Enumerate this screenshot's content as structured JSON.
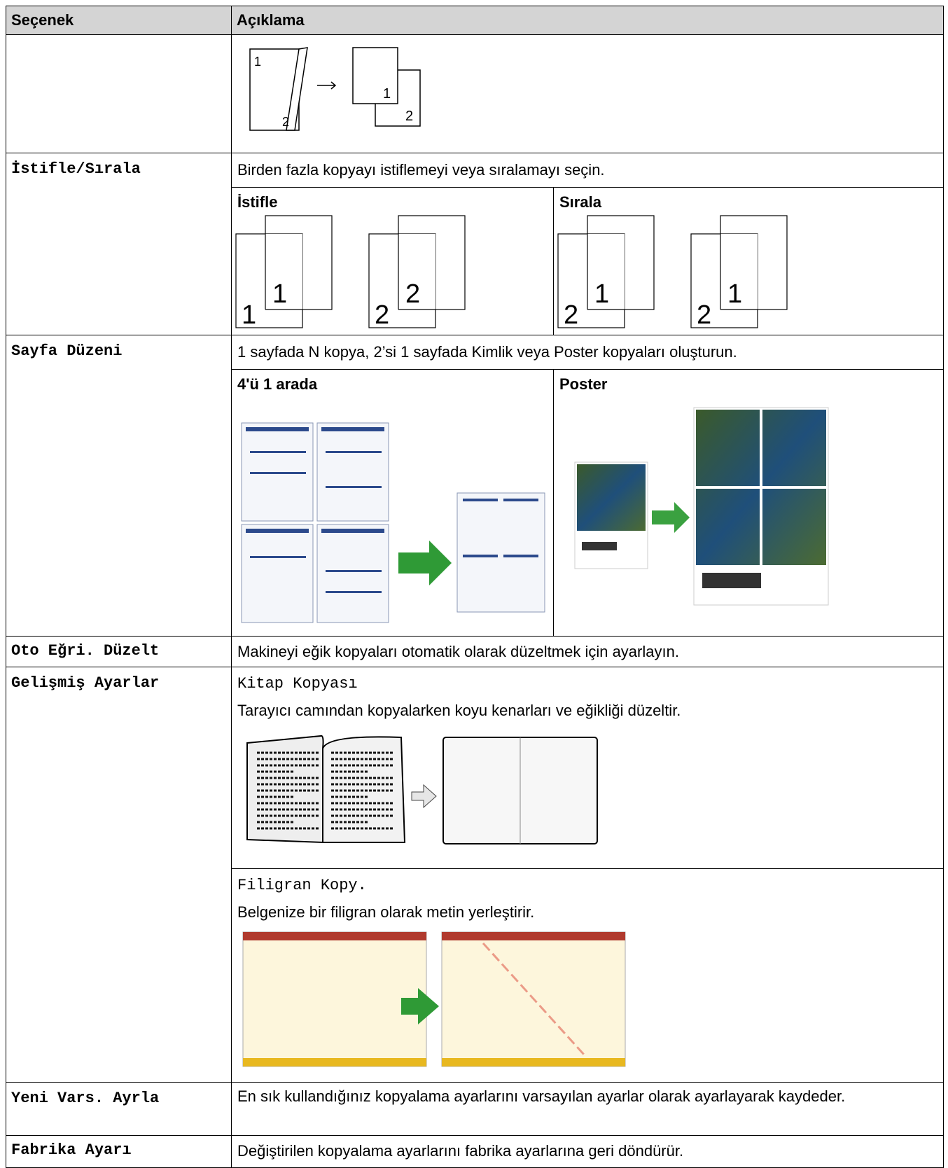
{
  "table": {
    "headers": [
      "Seçenek",
      "Açıklama"
    ],
    "rows": [
      {
        "figure_labels": [
          "1",
          "2",
          "1",
          "2"
        ]
      },
      {
        "option": "İstifle/Sırala",
        "description": "Birden fazla kopyayı istiflemeyi veya sıralamayı seçin.",
        "sub": [
          {
            "title": "İstifle",
            "labels": [
              "1",
              "1",
              "2",
              "2"
            ]
          },
          {
            "title": "Sırala",
            "labels": [
              "2",
              "1",
              "2",
              "1"
            ]
          }
        ]
      },
      {
        "option": "Sayfa Düzeni",
        "description": "1 sayfada N kopya, 2’si 1 sayfada Kimlik veya Poster kopyaları oluşturun.",
        "sub": [
          {
            "title": "4'ü 1 arada"
          },
          {
            "title": "Poster"
          }
        ]
      },
      {
        "option": "Oto Eğri. Düzelt",
        "description": "Makineyi eğik kopyaları otomatik olarak düzeltmek için ayarlayın."
      },
      {
        "option": "Gelişmiş Ayarlar",
        "items": [
          {
            "name": "Kitap Kopyası",
            "description": "Tarayıcı camından kopyalarken koyu kenarları ve eğikliği düzeltir."
          },
          {
            "name": "Filigran Kopy.",
            "description": "Belgenize bir filigran olarak metin yerleştirir."
          }
        ]
      },
      {
        "option": "Yeni Vars. Ayrla",
        "description": "En sık kullandığınız kopyalama ayarlarını varsayılan ayarlar olarak ayarlayarak kaydeder."
      },
      {
        "option": "Fabrika Ayarı",
        "description": "Değiştirilen kopyalama ayarlarını fabrika ayarlarına geri döndürür."
      }
    ]
  }
}
